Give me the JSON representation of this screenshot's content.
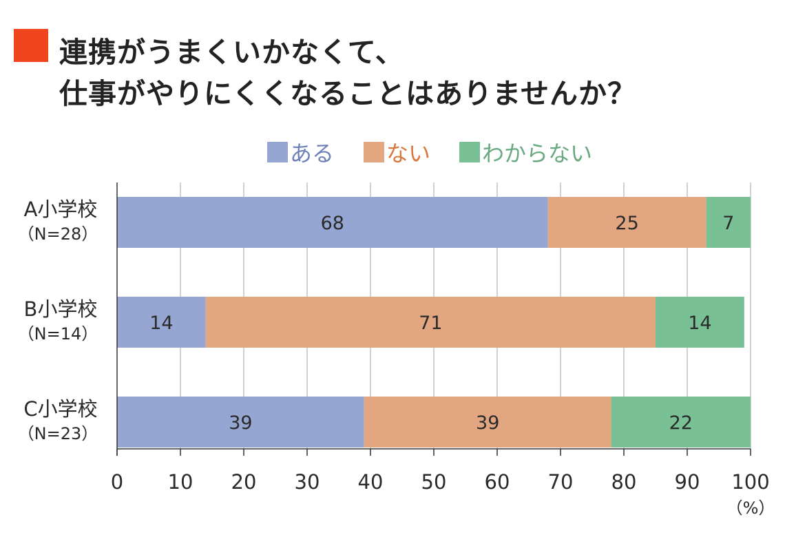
{
  "title": {
    "line1": "連携がうまくいかなくて、",
    "line2": "仕事がやりにくくなることはありませんか？",
    "marker_color": "#f0441d"
  },
  "chart_data": {
    "type": "bar",
    "orientation": "horizontal",
    "stacked": true,
    "categories": [
      {
        "name": "A小学校",
        "sub": "（N=28）"
      },
      {
        "name": "B小学校",
        "sub": "（N=14）"
      },
      {
        "name": "C小学校",
        "sub": "（N=23）"
      }
    ],
    "series": [
      {
        "name": "ある",
        "color": "#95a6d2",
        "legend_text_color": "#6f80b8",
        "values": [
          68,
          14,
          39
        ]
      },
      {
        "name": "ない",
        "color": "#e2a781",
        "legend_text_color": "#d9783e",
        "values": [
          25,
          71,
          39
        ]
      },
      {
        "name": "わからない",
        "color": "#79c095",
        "legend_text_color": "#6aa880",
        "values": [
          7,
          14,
          22
        ]
      }
    ],
    "xlim": [
      0,
      100
    ],
    "xticks": [
      0,
      10,
      20,
      30,
      40,
      50,
      60,
      70,
      80,
      90,
      100
    ],
    "unit_label": "（%）",
    "grid": true,
    "legend_position": "top"
  }
}
